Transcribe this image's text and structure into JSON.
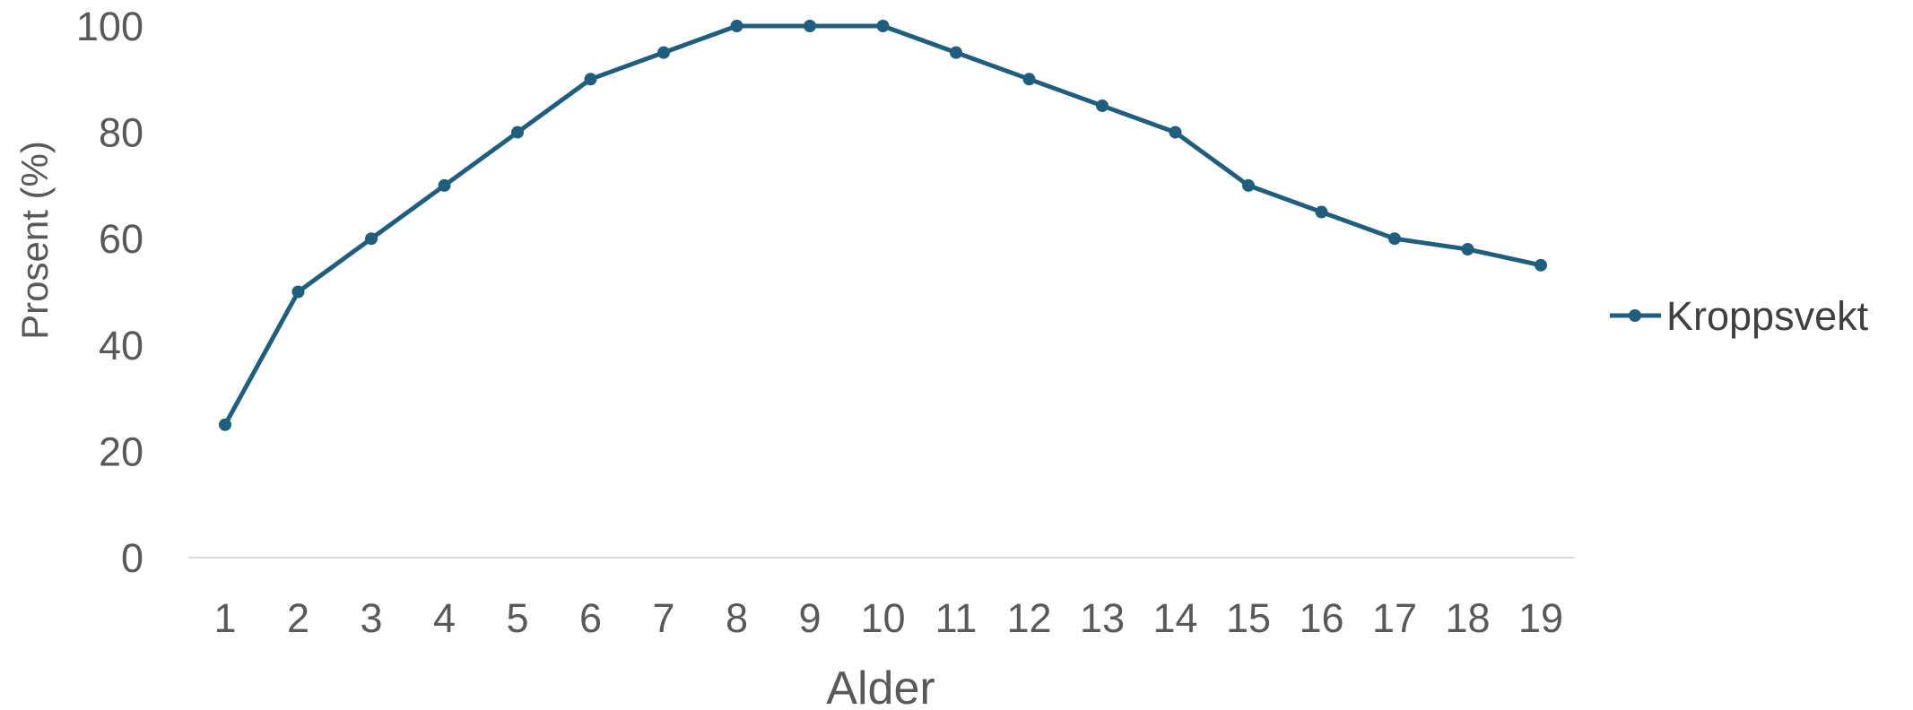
{
  "chart_data": {
    "type": "line",
    "title": "",
    "xlabel": "Alder",
    "ylabel": "Prosent (%)",
    "categories": [
      "1",
      "2",
      "3",
      "4",
      "5",
      "6",
      "7",
      "8",
      "9",
      "10",
      "11",
      "12",
      "13",
      "14",
      "15",
      "16",
      "17",
      "18",
      "19"
    ],
    "ylim": [
      0,
      100
    ],
    "yticks": [
      "0",
      "20",
      "40",
      "60",
      "80",
      "100"
    ],
    "grid": false,
    "legend": "right",
    "series": [
      {
        "name": "Kroppsvekt",
        "color": "#1F5F7D",
        "marker": "circle",
        "values": [
          25,
          50,
          60,
          70,
          80,
          90,
          95,
          100,
          100,
          100,
          95,
          90,
          85,
          80,
          70,
          65,
          60,
          58,
          55
        ]
      }
    ]
  },
  "colors": {
    "axis_line": "#D9D9D9",
    "tick_text": "#595959"
  }
}
